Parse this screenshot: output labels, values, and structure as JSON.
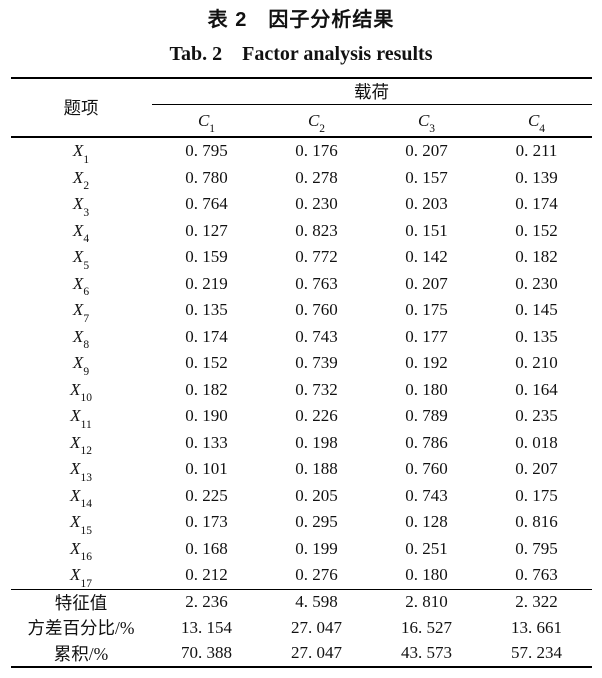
{
  "titles": {
    "zh": "表 2　因子分析结果",
    "en": "Tab. 2　Factor analysis results"
  },
  "table": {
    "item_header": "题项",
    "loading_header": "载荷",
    "factors": [
      {
        "base": "C",
        "sub": "1"
      },
      {
        "base": "C",
        "sub": "2"
      },
      {
        "base": "C",
        "sub": "3"
      },
      {
        "base": "C",
        "sub": "4"
      }
    ],
    "rows": [
      {
        "base": "X",
        "sub": "1",
        "values": [
          "0. 795",
          "0. 176",
          "0. 207",
          "0. 211"
        ]
      },
      {
        "base": "X",
        "sub": "2",
        "values": [
          "0. 780",
          "0. 278",
          "0. 157",
          "0. 139"
        ]
      },
      {
        "base": "X",
        "sub": "3",
        "values": [
          "0. 764",
          "0. 230",
          "0. 203",
          "0. 174"
        ]
      },
      {
        "base": "X",
        "sub": "4",
        "values": [
          "0. 127",
          "0. 823",
          "0. 151",
          "0. 152"
        ]
      },
      {
        "base": "X",
        "sub": "5",
        "values": [
          "0. 159",
          "0. 772",
          "0. 142",
          "0. 182"
        ]
      },
      {
        "base": "X",
        "sub": "6",
        "values": [
          "0. 219",
          "0. 763",
          "0. 207",
          "0. 230"
        ]
      },
      {
        "base": "X",
        "sub": "7",
        "values": [
          "0. 135",
          "0. 760",
          "0. 175",
          "0. 145"
        ]
      },
      {
        "base": "X",
        "sub": "8",
        "values": [
          "0. 174",
          "0. 743",
          "0. 177",
          "0. 135"
        ]
      },
      {
        "base": "X",
        "sub": "9",
        "values": [
          "0. 152",
          "0. 739",
          "0. 192",
          "0. 210"
        ]
      },
      {
        "base": "X",
        "sub": "10",
        "values": [
          "0. 182",
          "0. 732",
          "0. 180",
          "0. 164"
        ]
      },
      {
        "base": "X",
        "sub": "11",
        "values": [
          "0. 190",
          "0. 226",
          "0. 789",
          "0. 235"
        ]
      },
      {
        "base": "X",
        "sub": "12",
        "values": [
          "0. 133",
          "0. 198",
          "0. 786",
          "0. 018"
        ]
      },
      {
        "base": "X",
        "sub": "13",
        "values": [
          "0. 101",
          "0. 188",
          "0. 760",
          "0. 207"
        ]
      },
      {
        "base": "X",
        "sub": "14",
        "values": [
          "0. 225",
          "0. 205",
          "0. 743",
          "0. 175"
        ]
      },
      {
        "base": "X",
        "sub": "15",
        "values": [
          "0. 173",
          "0. 295",
          "0. 128",
          "0. 816"
        ]
      },
      {
        "base": "X",
        "sub": "16",
        "values": [
          "0. 168",
          "0. 199",
          "0. 251",
          "0. 795"
        ]
      },
      {
        "base": "X",
        "sub": "17",
        "values": [
          "0. 212",
          "0. 276",
          "0. 180",
          "0. 763"
        ]
      }
    ],
    "summary": [
      {
        "label": "特征值",
        "values": [
          "2. 236",
          "4. 598",
          "2. 810",
          "2. 322"
        ]
      },
      {
        "label": "方差百分比/%",
        "values": [
          "13. 154",
          "27. 047",
          "16. 527",
          "13. 661"
        ]
      },
      {
        "label": "累积/%",
        "values": [
          "70. 388",
          "27. 047",
          "43. 573",
          "57. 234"
        ]
      }
    ]
  }
}
